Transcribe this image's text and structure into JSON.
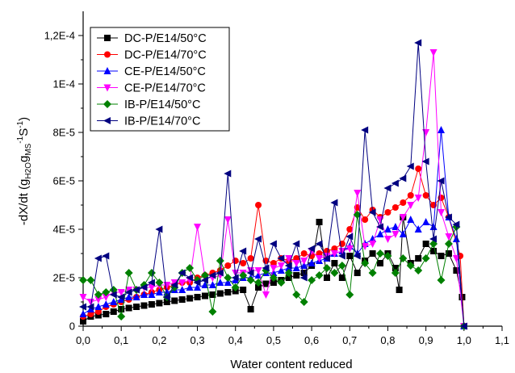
{
  "chart_data": {
    "type": "scatter",
    "xlabel": "Water content reduced",
    "ylabel": {
      "parts": [
        "-dX/dt (g",
        "H2O",
        "g",
        "MS",
        "-1",
        "S",
        "-1",
        ")"
      ]
    },
    "xlim": [
      0.0,
      1.1
    ],
    "ylim": [
      0,
      0.00013
    ],
    "x_ticks": [
      0.0,
      0.1,
      0.2,
      0.3,
      0.4,
      0.5,
      0.6,
      0.7,
      0.8,
      0.9,
      1.0,
      1.1
    ],
    "x_tick_labels": [
      "0,0",
      "0,1",
      "0,2",
      "0,3",
      "0,4",
      "0,5",
      "0,6",
      "0,7",
      "0,8",
      "0,9",
      "1,0",
      "1,1"
    ],
    "y_ticks": [
      0,
      2e-05,
      4e-05,
      6e-05,
      8e-05,
      0.0001,
      0.00012
    ],
    "y_tick_labels": [
      "0",
      "2E-5",
      "4E-5",
      "6E-5",
      "8E-5",
      "1E-4",
      "1,2E-4"
    ],
    "grid": false,
    "legend_position": "top-left",
    "series": [
      {
        "name": "DC-P/E14/50°C",
        "color": "#000000",
        "marker": "square",
        "x": [
          0.0,
          0.02,
          0.04,
          0.06,
          0.08,
          0.1,
          0.12,
          0.14,
          0.16,
          0.18,
          0.2,
          0.22,
          0.24,
          0.26,
          0.28,
          0.3,
          0.32,
          0.34,
          0.36,
          0.38,
          0.4,
          0.42,
          0.44,
          0.46,
          0.48,
          0.5,
          0.52,
          0.54,
          0.56,
          0.58,
          0.6,
          0.62,
          0.64,
          0.66,
          0.68,
          0.7,
          0.72,
          0.74,
          0.76,
          0.78,
          0.8,
          0.82,
          0.83,
          0.84,
          0.86,
          0.88,
          0.9,
          0.92,
          0.94,
          0.96,
          0.98,
          0.995,
          1.0
        ],
        "values": [
          2e-06,
          4e-06,
          4.5e-06,
          5e-06,
          6e-06,
          7e-06,
          7.5e-06,
          8e-06,
          8.5e-06,
          9e-06,
          9.5e-06,
          1e-05,
          1.05e-05,
          1.1e-05,
          1.15e-05,
          1.2e-05,
          1.25e-05,
          1.3e-05,
          1.35e-05,
          1.4e-05,
          1.45e-05,
          1.5e-05,
          7e-06,
          1.6e-05,
          1.75e-05,
          1.8e-05,
          1.9e-05,
          2e-05,
          2.1e-05,
          2.2e-05,
          2.5e-05,
          4.3e-05,
          2e-05,
          2.6e-05,
          2e-05,
          2.9e-05,
          2.2e-05,
          2.7e-05,
          3e-05,
          2.6e-05,
          3e-05,
          2.4e-05,
          1.5e-05,
          4.5e-05,
          2.6e-05,
          2.8e-05,
          3.4e-05,
          3.1e-05,
          2.9e-05,
          3e-05,
          2.3e-05,
          1.2e-05,
          0.0
        ]
      },
      {
        "name": "DC-P/E14/70°C",
        "color": "#ff0000",
        "marker": "circle",
        "x": [
          0.0,
          0.02,
          0.04,
          0.06,
          0.08,
          0.1,
          0.12,
          0.14,
          0.16,
          0.18,
          0.2,
          0.22,
          0.24,
          0.26,
          0.28,
          0.3,
          0.32,
          0.34,
          0.36,
          0.38,
          0.4,
          0.42,
          0.44,
          0.46,
          0.48,
          0.5,
          0.52,
          0.54,
          0.56,
          0.58,
          0.6,
          0.62,
          0.64,
          0.66,
          0.68,
          0.7,
          0.72,
          0.74,
          0.76,
          0.78,
          0.8,
          0.82,
          0.84,
          0.86,
          0.88,
          0.9,
          0.92,
          0.94,
          0.96,
          0.99,
          1.0
        ],
        "values": [
          4e-06,
          5e-06,
          6e-06,
          8e-06,
          9e-06,
          1e-05,
          1.1e-05,
          1.2e-05,
          1.3e-05,
          1.4e-05,
          1.5e-05,
          1.6e-05,
          1.7e-05,
          1.8e-05,
          1.8e-05,
          2e-05,
          2.1e-05,
          2.2e-05,
          2.3e-05,
          2.5e-05,
          2.7e-05,
          2.6e-05,
          2.8e-05,
          5e-05,
          2.7e-05,
          2.6e-05,
          2.8e-05,
          2.7e-05,
          2.8e-05,
          3e-05,
          2.9e-05,
          3e-05,
          3.1e-05,
          3.2e-05,
          3.4e-05,
          4e-05,
          4.9e-05,
          4.4e-05,
          4.8e-05,
          4.5e-05,
          4.7e-05,
          4.9e-05,
          5.1e-05,
          5.4e-05,
          6.5e-05,
          5.4e-05,
          5e-05,
          5.3e-05,
          4.5e-05,
          2.9e-05,
          0.0
        ]
      },
      {
        "name": "CE-P/E14/50°C",
        "color": "#0000ff",
        "marker": "triangle-up",
        "x": [
          0.0,
          0.02,
          0.04,
          0.06,
          0.08,
          0.1,
          0.12,
          0.14,
          0.16,
          0.18,
          0.2,
          0.22,
          0.24,
          0.26,
          0.28,
          0.3,
          0.32,
          0.34,
          0.36,
          0.38,
          0.4,
          0.42,
          0.44,
          0.46,
          0.48,
          0.5,
          0.52,
          0.54,
          0.56,
          0.58,
          0.6,
          0.62,
          0.64,
          0.66,
          0.68,
          0.7,
          0.72,
          0.74,
          0.76,
          0.78,
          0.8,
          0.82,
          0.84,
          0.86,
          0.88,
          0.9,
          0.92,
          0.94,
          0.96,
          0.98,
          1.0
        ],
        "values": [
          5e-06,
          7e-06,
          8e-06,
          9e-06,
          1e-05,
          1.1e-05,
          1.2e-05,
          1.2e-05,
          1.3e-05,
          1.3e-05,
          1.4e-05,
          1.4e-05,
          1.5e-05,
          1.5e-05,
          1.6e-05,
          1.6e-05,
          1.7e-05,
          1.7e-05,
          1.8e-05,
          1.8e-05,
          1.9e-05,
          2e-05,
          2e-05,
          2.1e-05,
          2.2e-05,
          2.2e-05,
          2.3e-05,
          2.4e-05,
          2.4e-05,
          2.5e-05,
          2.6e-05,
          2.7e-05,
          2.8e-05,
          3e-05,
          3.1e-05,
          3.3e-05,
          3e-05,
          3.4e-05,
          3.6e-05,
          3.8e-05,
          4e-05,
          4.1e-05,
          3.8e-05,
          4.4e-05,
          4e-05,
          4.3e-05,
          4.1e-05,
          8.1e-05,
          4.5e-05,
          3.6e-05,
          0.0
        ]
      },
      {
        "name": "CE-P/E14/70°C",
        "color": "#ff00ff",
        "marker": "triangle-down",
        "x": [
          0.0,
          0.02,
          0.04,
          0.06,
          0.08,
          0.1,
          0.12,
          0.14,
          0.16,
          0.18,
          0.2,
          0.22,
          0.24,
          0.26,
          0.28,
          0.3,
          0.32,
          0.34,
          0.36,
          0.38,
          0.4,
          0.42,
          0.44,
          0.46,
          0.48,
          0.5,
          0.52,
          0.54,
          0.56,
          0.58,
          0.6,
          0.62,
          0.64,
          0.66,
          0.68,
          0.7,
          0.72,
          0.74,
          0.76,
          0.78,
          0.8,
          0.82,
          0.84,
          0.86,
          0.88,
          0.9,
          0.92,
          0.94,
          0.96,
          0.98,
          1.0
        ],
        "values": [
          1.2e-05,
          1e-05,
          1.1e-05,
          1.2e-05,
          1.4e-05,
          1.4e-05,
          1.5e-05,
          1.5e-05,
          1.6e-05,
          1.6e-05,
          1.7e-05,
          1.7e-05,
          1.8e-05,
          1.8e-05,
          1.9e-05,
          4.1e-05,
          2e-05,
          2e-05,
          2.1e-05,
          4.4e-05,
          2.2e-05,
          2.2e-05,
          2.3e-05,
          2.3e-05,
          1.3e-05,
          2.4e-05,
          2.5e-05,
          2.8e-05,
          2.6e-05,
          2.7e-05,
          3.1e-05,
          2.8e-05,
          2.9e-05,
          3e-05,
          3.1e-05,
          3.2e-05,
          5.5e-05,
          3.3e-05,
          3.4e-05,
          4.4e-05,
          3.6e-05,
          3.8e-05,
          4.5e-05,
          5e-05,
          5.3e-05,
          8e-05,
          0.000113,
          4.7e-05,
          3.7e-05,
          2.8e-05,
          0.0
        ]
      },
      {
        "name": "IB-P/E14/50°C",
        "color": "#008000",
        "marker": "diamond",
        "x": [
          0.0,
          0.02,
          0.04,
          0.06,
          0.08,
          0.1,
          0.12,
          0.14,
          0.16,
          0.18,
          0.2,
          0.22,
          0.24,
          0.26,
          0.28,
          0.3,
          0.32,
          0.34,
          0.36,
          0.38,
          0.4,
          0.42,
          0.44,
          0.46,
          0.48,
          0.5,
          0.52,
          0.54,
          0.56,
          0.58,
          0.6,
          0.62,
          0.64,
          0.66,
          0.68,
          0.7,
          0.72,
          0.74,
          0.76,
          0.78,
          0.8,
          0.82,
          0.84,
          0.86,
          0.88,
          0.9,
          0.92,
          0.94,
          0.96,
          0.98,
          1.0
        ],
        "values": [
          1.9e-05,
          1.9e-05,
          1.3e-05,
          1.4e-05,
          1.5e-05,
          4e-06,
          2.2e-05,
          1.5e-05,
          1.7e-05,
          2.2e-05,
          1.8e-05,
          1.2e-05,
          1.6e-05,
          2.2e-05,
          2.4e-05,
          1.9e-05,
          2.1e-05,
          6e-06,
          2.7e-05,
          2e-05,
          1.6e-05,
          2.1e-05,
          1.9e-05,
          1.8e-05,
          2.3e-05,
          2e-05,
          1.8e-05,
          2.2e-05,
          1.3e-05,
          1e-05,
          1.9e-05,
          2.1e-05,
          2.4e-05,
          2.2e-05,
          2.5e-05,
          1.3e-05,
          4.6e-05,
          2.6e-05,
          2.2e-05,
          3e-05,
          2.9e-05,
          2.2e-05,
          2.8e-05,
          2.5e-05,
          2.3e-05,
          2.8e-05,
          3.4e-05,
          1.9e-05,
          3.4e-05,
          4.1e-05,
          0.0
        ]
      },
      {
        "name": "IB-P/E14/70°C",
        "color": "#000080",
        "marker": "triangle-left",
        "x": [
          0.0,
          0.02,
          0.04,
          0.06,
          0.08,
          0.1,
          0.12,
          0.14,
          0.16,
          0.18,
          0.2,
          0.22,
          0.24,
          0.26,
          0.28,
          0.3,
          0.32,
          0.34,
          0.36,
          0.38,
          0.4,
          0.42,
          0.44,
          0.46,
          0.48,
          0.5,
          0.52,
          0.54,
          0.56,
          0.58,
          0.6,
          0.62,
          0.64,
          0.66,
          0.68,
          0.7,
          0.72,
          0.74,
          0.76,
          0.78,
          0.8,
          0.82,
          0.84,
          0.86,
          0.88,
          0.9,
          0.92,
          0.94,
          0.96,
          0.98,
          1.0
        ],
        "values": [
          8e-06,
          8e-06,
          2.8e-05,
          2.9e-05,
          1.3e-05,
          1.2e-05,
          1.4e-05,
          1.5e-05,
          1.6e-05,
          1.8e-05,
          4e-05,
          1.2e-05,
          1.7e-05,
          2.2e-05,
          2e-05,
          1.8e-05,
          1.9e-05,
          2.1e-05,
          2.2e-05,
          6.3e-05,
          2e-05,
          3.1e-05,
          2.2e-05,
          3.6e-05,
          2.4e-05,
          3.4e-05,
          2.8e-05,
          2.5e-05,
          3.4e-05,
          2e-05,
          3.2e-05,
          3.4e-05,
          2.8e-05,
          5.1e-05,
          2.9e-05,
          3.7e-05,
          2.9e-05,
          8.1e-05,
          4.7e-05,
          4.1e-05,
          5.7e-05,
          5.9e-05,
          6.1e-05,
          6.6e-05,
          0.000117,
          6.8e-05,
          3.6e-05,
          6e-05,
          4.5e-05,
          4.2e-05,
          0.0
        ]
      }
    ]
  }
}
